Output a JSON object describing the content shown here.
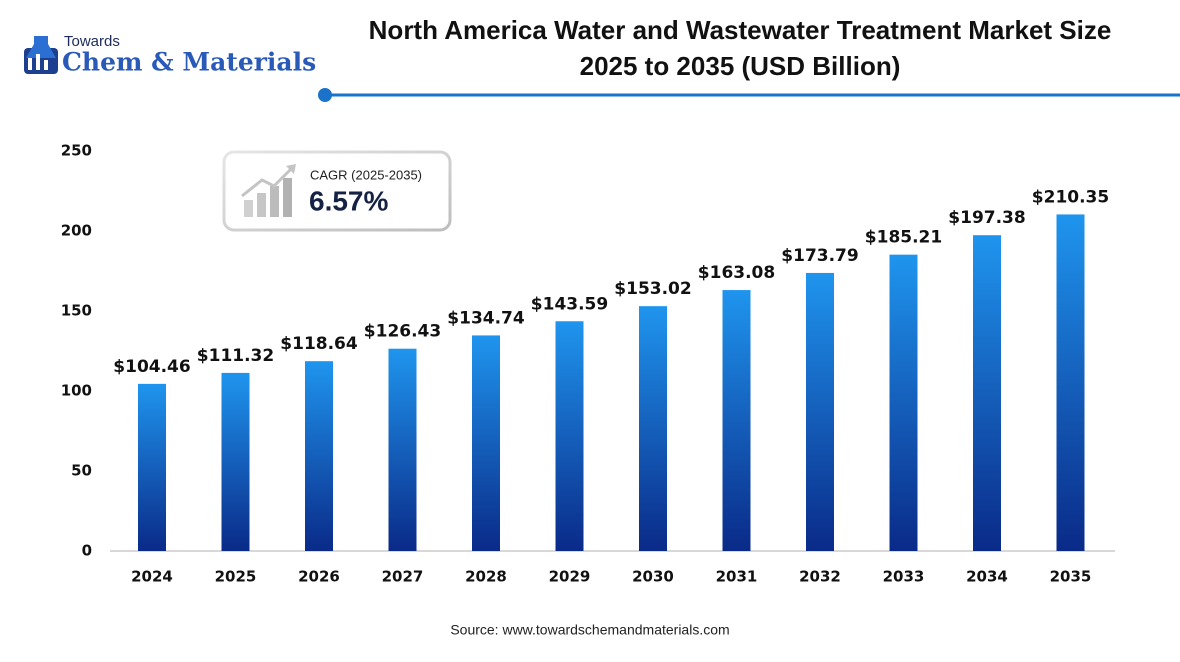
{
  "logo": {
    "top": "Towards",
    "main": "Chem & Materials"
  },
  "chart_data": {
    "type": "bar",
    "title": "North America Water and Wastewater Treatment Market Size",
    "subtitle": "2025 to 2035 (USD Billion)",
    "categories": [
      "2024",
      "2025",
      "2026",
      "2027",
      "2028",
      "2029",
      "2030",
      "2031",
      "2032",
      "2033",
      "2034",
      "2035"
    ],
    "values": [
      104.46,
      111.32,
      118.64,
      126.43,
      134.74,
      143.59,
      153.02,
      163.08,
      173.79,
      185.21,
      197.38,
      210.35
    ],
    "value_labels": [
      "$104.46",
      "$111.32",
      "$118.64",
      "$126.43",
      "$134.74",
      "$143.59",
      "$153.02",
      "$163.08",
      "$173.79",
      "$185.21",
      "$197.38",
      "$210.35"
    ],
    "colors": [
      "#1f95ee",
      "#0a2a88"
    ],
    "ylim": [
      0,
      250
    ],
    "yticks": [
      0,
      50,
      100,
      150,
      200,
      250
    ],
    "grid": false,
    "annotation": {
      "label": "CAGR (2025-2035)",
      "value": "6.57%"
    },
    "source": "Source: www.towardschemandmaterials.com"
  }
}
